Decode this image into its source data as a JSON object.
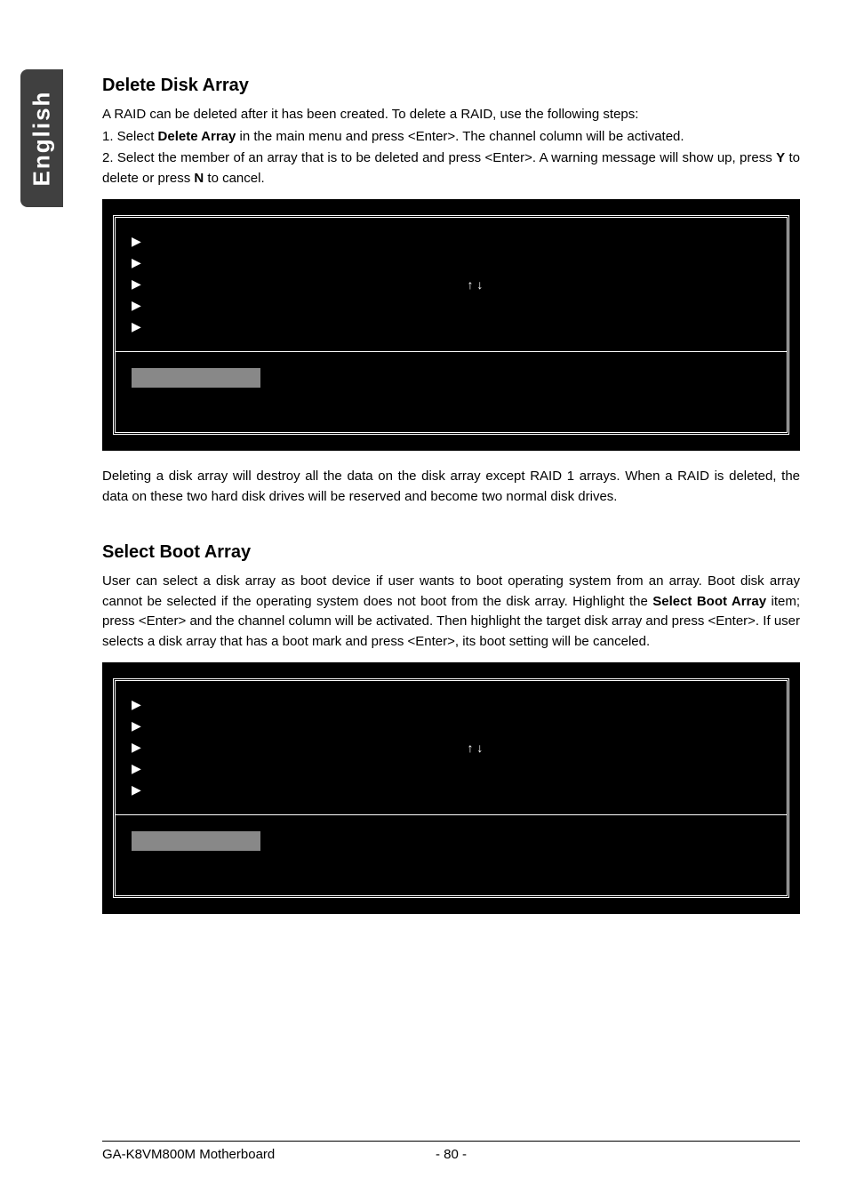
{
  "sideTab": "English",
  "section1": {
    "heading": "Delete Disk Array",
    "para1_pre": "A RAID can be deleted after it has been created.  To delete a RAID, use the following steps:",
    "para2_pre": "1. Select ",
    "para2_bold": "Delete Array",
    "para2_post": " in the main menu and press <Enter>.  The channel column will be activated.",
    "para3_pre": "2. Select the member of an array that is to be deleted and press <Enter>.  A warning message will show up, press ",
    "para3_bold1": "Y",
    "para3_mid": " to delete or press ",
    "para3_bold2": "N",
    "para3_post": " to cancel.",
    "afterPanel": "Deleting a disk array will destroy all the data on the disk array except RAID 1 arrays. When a RAID is deleted, the data on these two hard disk drives will be reserved and become two normal disk drives."
  },
  "section2": {
    "heading": "Select Boot Array",
    "para_pre": "User can select a disk array  as boot device if user wants to  boot operating  system  from  an  array. Boot disk  array  cannot  be selected if the operating system does not boot from the disk array. Highlight the ",
    "para_bold": "Select Boot Array",
    "para_post": " item; press <Enter> and the channel column will be activated. Then highlight the target disk array and press <Enter>. If user selects a disk array that has a boot mark and press <Enter>, its boot setting will be canceled."
  },
  "bios": {
    "arrows": "↑ ↓",
    "triangle": "▶"
  },
  "footer": {
    "left": "GA-K8VM800M Motherboard",
    "page": "- 80 -"
  },
  "colors": {
    "panel_bg": "#000000",
    "panel_text": "#ffffff",
    "grey_bar": "#888888",
    "side_tab_bg": "#404040"
  }
}
